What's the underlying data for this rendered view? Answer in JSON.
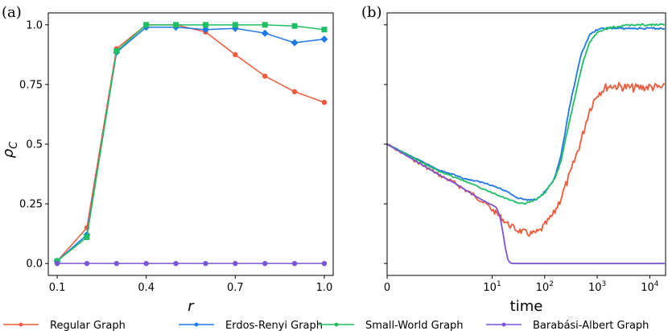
{
  "colors": {
    "regular": "#ef5a3d",
    "erdos": "#1f77e8",
    "small": "#1fbf64",
    "barabasi": "#7b55d6",
    "axis": "#000000"
  },
  "legend": [
    {
      "key": "regular",
      "label": "Regular Graph"
    },
    {
      "key": "erdos",
      "label": "Erdos-Renyi Graph"
    },
    {
      "key": "small",
      "label": "Small-World Graph"
    },
    {
      "key": "barabasi",
      "label": "Barabási-Albert Graph"
    }
  ],
  "chart_data": [
    {
      "type": "line",
      "panel_label": "(a)",
      "xlabel": "r",
      "ylabel": "ρ",
      "ylabel_subscript": "C",
      "xlim": [
        0.07,
        1.03
      ],
      "ylim": [
        -0.05,
        1.05
      ],
      "xticks": [
        0.1,
        0.4,
        0.7,
        1.0
      ],
      "xtick_labels": [
        "0.1",
        "0.4",
        "0.7",
        "1.0"
      ],
      "yticks": [
        0.0,
        0.25,
        0.5,
        0.75,
        1.0
      ],
      "ytick_labels": [
        "0.0",
        "0.25",
        "0.5",
        "0.75",
        "1.0"
      ],
      "x": [
        0.1,
        0.2,
        0.3,
        0.4,
        0.5,
        0.6,
        0.7,
        0.8,
        0.9,
        1.0
      ],
      "series": [
        {
          "key": "regular",
          "name": "Regular Graph",
          "marker": "circle",
          "values": [
            0.01,
            0.15,
            0.9,
            1.0,
            1.0,
            0.97,
            0.875,
            0.785,
            0.72,
            0.675
          ]
        },
        {
          "key": "erdos",
          "name": "Erdos-Renyi Graph",
          "marker": "diamond",
          "values": [
            0.01,
            0.12,
            0.885,
            0.99,
            0.99,
            0.98,
            0.985,
            0.965,
            0.925,
            0.94
          ]
        },
        {
          "key": "small",
          "name": "Small-World Graph",
          "marker": "square",
          "values": [
            0.01,
            0.11,
            0.89,
            1.0,
            1.0,
            1.0,
            1.0,
            1.0,
            0.995,
            0.98
          ]
        },
        {
          "key": "barabasi",
          "name": "Barabási-Albert Graph",
          "marker": "circle",
          "values": [
            0.0,
            0.0,
            0.0,
            0.0,
            0.0,
            0.0,
            0.0,
            0.0,
            0.0,
            0.0
          ]
        }
      ]
    },
    {
      "type": "line",
      "panel_label": "(b)",
      "xlabel": "time",
      "xscale": "symlog",
      "xlim": [
        0,
        20000
      ],
      "ylim": [
        -0.05,
        1.05
      ],
      "xticks": [
        0,
        10,
        100,
        1000,
        10000
      ],
      "xtick_labels": [
        {
          "base": "0",
          "exp": ""
        },
        {
          "base": "10",
          "exp": "1"
        },
        {
          "base": "10",
          "exp": "2"
        },
        {
          "base": "10",
          "exp": "3"
        },
        {
          "base": "10",
          "exp": "4"
        }
      ],
      "yticks": [
        0.0,
        0.25,
        0.5,
        0.75,
        1.0
      ],
      "series": [
        {
          "key": "regular",
          "name": "Regular Graph",
          "noise": 0.018,
          "x": [
            0,
            1,
            2,
            3,
            5,
            8,
            12,
            20,
            30,
            50,
            60,
            80,
            100,
            150,
            200,
            300,
            500,
            700,
            1000,
            1500,
            2000,
            3000,
            5000,
            10000,
            20000
          ],
          "values": [
            0.5,
            0.37,
            0.335,
            0.31,
            0.28,
            0.245,
            0.21,
            0.165,
            0.14,
            0.125,
            0.125,
            0.135,
            0.16,
            0.21,
            0.27,
            0.37,
            0.52,
            0.64,
            0.71,
            0.74,
            0.745,
            0.74,
            0.735,
            0.74,
            0.735
          ]
        },
        {
          "key": "erdos",
          "name": "Erdos-Renyi Graph",
          "noise": 0.004,
          "x": [
            0,
            1,
            2,
            3,
            5,
            8,
            12,
            20,
            30,
            50,
            70,
            100,
            150,
            200,
            300,
            500,
            700,
            1000,
            1500,
            2000,
            3000,
            5000,
            10000,
            20000
          ],
          "values": [
            0.5,
            0.39,
            0.37,
            0.355,
            0.345,
            0.335,
            0.32,
            0.3,
            0.275,
            0.265,
            0.27,
            0.3,
            0.35,
            0.44,
            0.66,
            0.88,
            0.955,
            0.98,
            0.985,
            0.985,
            0.985,
            0.985,
            0.985,
            0.985
          ]
        },
        {
          "key": "small",
          "name": "Small-World Graph",
          "noise": 0.004,
          "x": [
            0,
            1,
            2,
            3,
            5,
            8,
            12,
            20,
            30,
            40,
            60,
            100,
            150,
            200,
            300,
            500,
            700,
            1000,
            1500,
            2000,
            3000,
            5000,
            10000,
            20000
          ],
          "values": [
            0.5,
            0.385,
            0.36,
            0.345,
            0.325,
            0.305,
            0.29,
            0.27,
            0.255,
            0.25,
            0.26,
            0.295,
            0.35,
            0.42,
            0.6,
            0.82,
            0.925,
            0.965,
            0.985,
            0.99,
            0.995,
            1.0,
            1.0,
            1.0
          ]
        },
        {
          "key": "barabasi",
          "name": "Barabási-Albert Graph",
          "noise": 0.0,
          "x": [
            0,
            1,
            2,
            3,
            5,
            8,
            10,
            12,
            14,
            16,
            18,
            20,
            22,
            25,
            30,
            50,
            100,
            1000,
            20000
          ],
          "values": [
            0.5,
            0.37,
            0.335,
            0.31,
            0.28,
            0.255,
            0.245,
            0.235,
            0.2,
            0.13,
            0.06,
            0.015,
            0.003,
            0.0,
            0.0,
            0.0,
            0.0,
            0.0,
            0.0
          ]
        }
      ]
    }
  ]
}
